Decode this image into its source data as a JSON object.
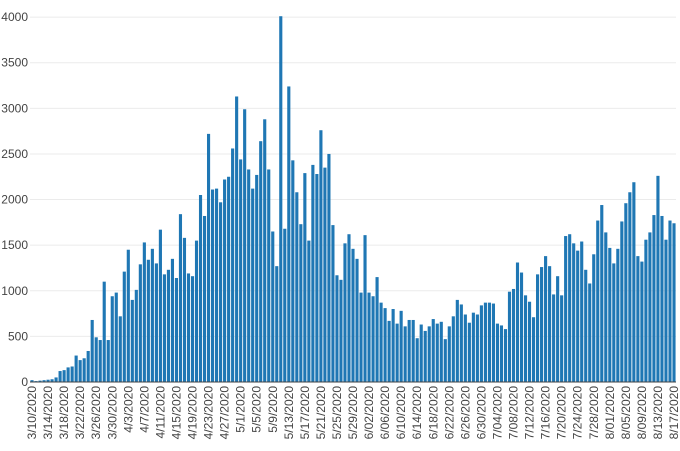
{
  "chart_data": {
    "type": "bar",
    "title": "",
    "xlabel": "",
    "ylabel": "",
    "bar_color": "#1f77b4",
    "start_date": "2020-03-10",
    "ylim": [
      0,
      4100
    ],
    "y_ticks": [
      0,
      500,
      1000,
      1500,
      2000,
      2500,
      3000,
      3500,
      4000
    ],
    "y_tick_labels": [
      "0",
      "500",
      "1000",
      "1500",
      "2000",
      "2500",
      "3000",
      "3500",
      "4000"
    ],
    "x_tick_labels": [
      "3/10/2020",
      "3/14/2020",
      "3/18/2020",
      "3/22/2020",
      "3/26/2020",
      "3/30/2020",
      "4/3/2020",
      "4/7/2020",
      "4/11/2020",
      "4/15/2020",
      "4/19/2020",
      "4/23/2020",
      "4/27/2020",
      "5/1/2020",
      "5/5/2020",
      "5/9/2020",
      "5/13/2020",
      "5/17/2020",
      "5/21/2020",
      "5/25/2020",
      "5/29/2020",
      "6/02/2020",
      "6/06/2020",
      "6/10/2020",
      "6/14/2020",
      "6/18/2020",
      "6/22/2020",
      "6/26/2020",
      "6/30/2020",
      "7/04/2020",
      "7/08/2020",
      "7/12/2020",
      "7/16/2020",
      "7/20/2020",
      "7/24/2020",
      "7/28/2020",
      "8/01/2020",
      "8/05/2020",
      "8/09/2020",
      "8/13/2020",
      "8/17/2020"
    ],
    "grid": true,
    "values": [
      20,
      10,
      15,
      20,
      25,
      30,
      50,
      120,
      130,
      160,
      170,
      290,
      240,
      260,
      340,
      680,
      490,
      460,
      1100,
      460,
      940,
      980,
      720,
      1210,
      1450,
      900,
      1010,
      1290,
      1530,
      1340,
      1460,
      1300,
      1670,
      1180,
      1230,
      1350,
      1140,
      1840,
      1580,
      1190,
      1160,
      1550,
      2050,
      1820,
      2720,
      2110,
      2120,
      1970,
      2220,
      2250,
      2560,
      3130,
      2440,
      2990,
      2330,
      2120,
      2270,
      2640,
      2880,
      2330,
      1650,
      1270,
      4010,
      1680,
      3240,
      2430,
      2080,
      1730,
      2290,
      1550,
      2380,
      2280,
      2760,
      2350,
      2500,
      1720,
      1170,
      1120,
      1520,
      1620,
      1460,
      1350,
      980,
      1610,
      980,
      940,
      1150,
      870,
      810,
      670,
      800,
      640,
      780,
      610,
      680,
      680,
      480,
      630,
      560,
      610,
      690,
      640,
      660,
      470,
      610,
      720,
      900,
      850,
      740,
      650,
      760,
      740,
      840,
      870,
      870,
      860,
      640,
      620,
      580,
      990,
      1020,
      1310,
      1200,
      950,
      880,
      710,
      1180,
      1260,
      1380,
      1270,
      960,
      1160,
      950,
      1600,
      1620,
      1520,
      1440,
      1540,
      1230,
      1080,
      1400,
      1770,
      1940,
      1640,
      1470,
      1300,
      1460,
      1760,
      1960,
      2080,
      2190,
      1380,
      1320,
      1560,
      1640,
      1830,
      2260,
      1820,
      1560,
      1770,
      1740
    ]
  }
}
